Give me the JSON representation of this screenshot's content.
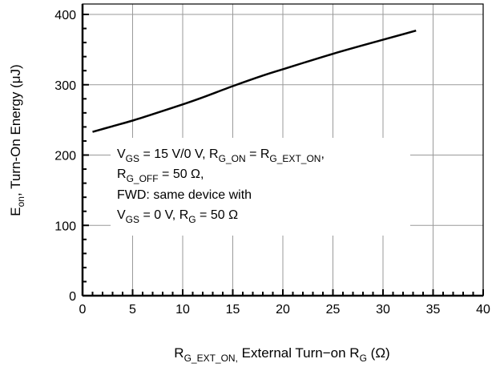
{
  "chart_data": {
    "type": "line",
    "xlabel": {
      "main": "R",
      "main_sub": "G_EXT_ON,",
      "rest": " External Turn−on R",
      "rest_sub": "G",
      "unit": " (Ω)"
    },
    "ylabel": {
      "main": "E",
      "main_sub": "on",
      "rest": ", Turn-On Energy (μJ)"
    },
    "xlim": [
      0,
      40
    ],
    "ylim": [
      0,
      400
    ],
    "x_ticks": [
      "0",
      "5",
      "10",
      "15",
      "20",
      "25",
      "30",
      "35",
      "40"
    ],
    "y_ticks": [
      "0",
      "100",
      "200",
      "300",
      "400"
    ],
    "grid": true,
    "series": [
      {
        "x": [
          1,
          3,
          5,
          7,
          10,
          12,
          15,
          18,
          20,
          25,
          30,
          33.3
        ],
        "y": [
          233,
          241,
          249,
          258,
          272,
          282,
          298,
          313,
          322,
          344,
          364,
          377
        ]
      }
    ],
    "annotation": {
      "line1": {
        "a": "V",
        "a_sub": "GS",
        "b": " = 15 V/0 V, R",
        "b_sub": "G_ON",
        "c": " = R",
        "c_sub": "G_EXT_ON",
        "d": ","
      },
      "line2": {
        "a": "R",
        "a_sub": "G_OFF",
        "b": " = 50 Ω,"
      },
      "line3": {
        "a": "FWD: same device with"
      },
      "line4": {
        "a": "V",
        "a_sub": "GS",
        "b": " = 0 V, R",
        "b_sub": "G",
        "c": " = 50 Ω"
      }
    }
  }
}
